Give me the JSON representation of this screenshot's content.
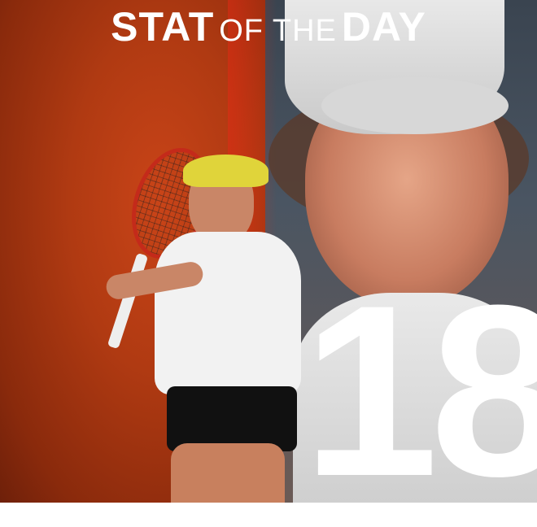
{
  "title": {
    "bold_1": "STAT",
    "thin": "OF THE",
    "bold_2": "DAY"
  },
  "stat": {
    "value": "18"
  },
  "colors": {
    "left_bg": "#b03a12",
    "right_bg": "#4a5562",
    "text": "#ffffff"
  }
}
